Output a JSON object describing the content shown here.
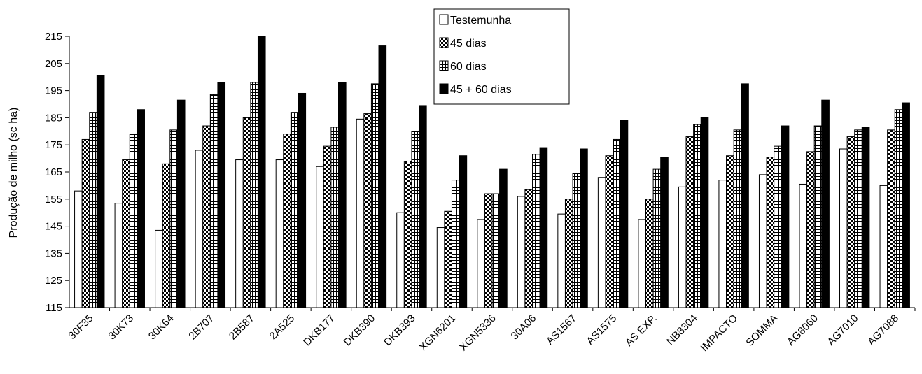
{
  "chart_data": {
    "type": "bar",
    "title": "",
    "xlabel": "",
    "ylabel": "Produção de milho (sc ha)",
    "ylim": [
      115,
      215
    ],
    "yticks": [
      115,
      125,
      135,
      145,
      155,
      165,
      175,
      185,
      195,
      205,
      215
    ],
    "grid": false,
    "legend_position": "top-center",
    "categories": [
      "30F35",
      "30K73",
      "30K64",
      "2B707",
      "2B587",
      "2A525",
      "DKB177",
      "DKB390",
      "DKB393",
      "XGN6201",
      "XGN5336",
      "30A06",
      "AS1567",
      "AS1575",
      "AS EXP.",
      "NB8304",
      "IMPACTO",
      "SOMMA",
      "AG8060",
      "AG7010",
      "AG7088"
    ],
    "series": [
      {
        "name": "Testemunha",
        "pattern": "white",
        "values": [
          158,
          153.5,
          143.5,
          173,
          169.5,
          169.5,
          167,
          184.5,
          150,
          144.5,
          147.5,
          156,
          149.5,
          163,
          147.5,
          159.5,
          162,
          164,
          160.5,
          173.5,
          160
        ]
      },
      {
        "name": "45 dias",
        "pattern": "dotted",
        "values": [
          177,
          169.5,
          168,
          182,
          185,
          179,
          174.5,
          186.5,
          169,
          150.5,
          157,
          158.5,
          155,
          171,
          155,
          178,
          171,
          170.5,
          172.5,
          178,
          180.5
        ]
      },
      {
        "name": "60 dias",
        "pattern": "grid",
        "values": [
          187,
          179,
          180.5,
          193.5,
          198,
          187,
          181.5,
          197.5,
          180,
          162,
          157,
          171.5,
          164.5,
          177,
          166,
          182.5,
          180.5,
          174.5,
          182,
          180.5,
          188
        ]
      },
      {
        "name": "45 + 60 dias",
        "pattern": "black",
        "values": [
          200.5,
          188,
          191.5,
          198,
          215,
          194,
          198,
          211.5,
          189.5,
          171,
          166,
          174,
          173.5,
          184,
          170.5,
          185,
          197.5,
          182,
          191.5,
          181.5,
          190.5
        ]
      }
    ]
  }
}
